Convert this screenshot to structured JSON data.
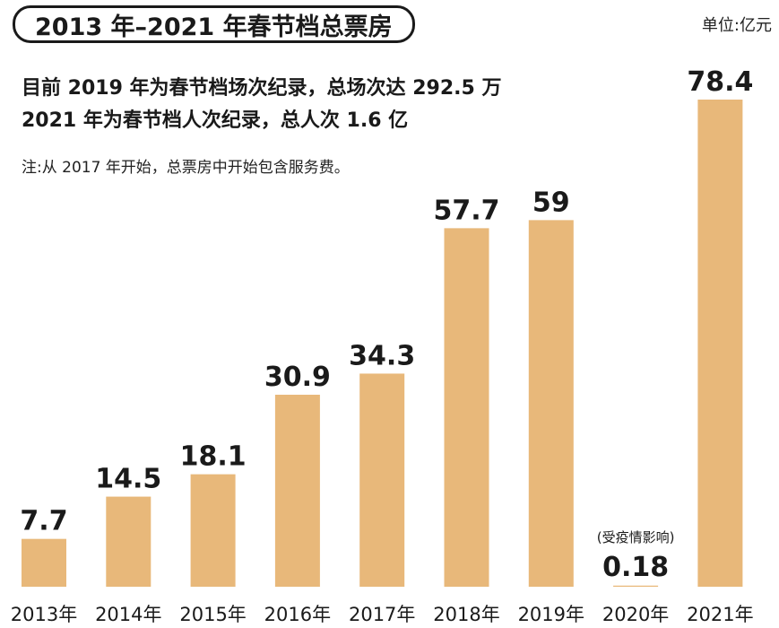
{
  "header": {
    "title": "2013 年–2021 年春节档总票房",
    "unit": "单位:亿元",
    "line1": "目前 2019 年为春节档场次纪录，总场次达 292.5 万",
    "line2": "2021 年为春节档人次纪录，总人次 1.6 亿",
    "note": "注:从 2017 年开始，总票房中开始包含服务费。"
  },
  "colors": {
    "bar": "#E8B87A",
    "text": "#1a1a1a"
  },
  "chart_data": {
    "type": "bar",
    "categories": [
      "2013年",
      "2014年",
      "2015年",
      "2016年",
      "2017年",
      "2018年",
      "2019年",
      "2020年",
      "2021年"
    ],
    "values": [
      7.7,
      14.5,
      18.1,
      30.9,
      34.3,
      57.7,
      59,
      0.18,
      78.4
    ],
    "value_labels": [
      "7.7",
      "14.5",
      "18.1",
      "30.9",
      "34.3",
      "57.7",
      "59",
      "0.18",
      "78.4"
    ],
    "annotations": [
      {
        "category": "2020年",
        "text": "(受疫情影响)"
      }
    ],
    "title": "2013 年–2021 年春节档总票房",
    "xlabel": "",
    "ylabel": "",
    "grid": false,
    "legend": "none"
  }
}
